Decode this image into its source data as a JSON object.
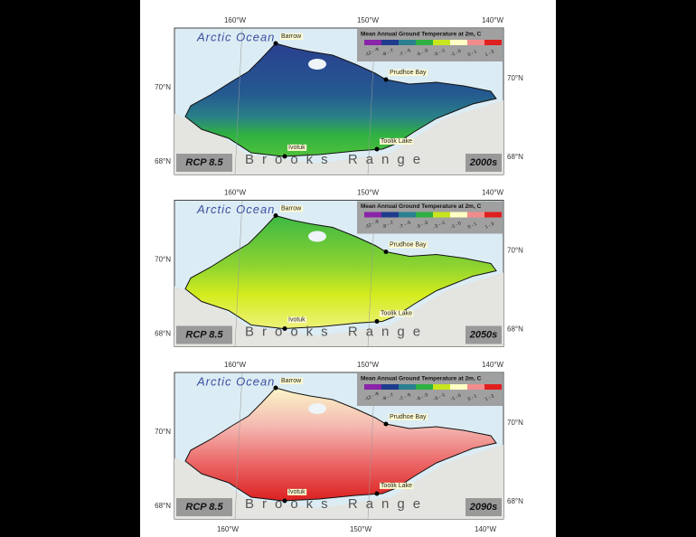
{
  "map": {
    "lon_labels": [
      "160°W",
      "150°W",
      "140°W"
    ],
    "lat_labels": [
      "70°N",
      "68°N"
    ],
    "ocean": "Arctic Ocean",
    "places": [
      "Barrow",
      "Prudhoe Bay",
      "Ivotuk",
      "Toolik Lake"
    ],
    "range": "Brooks Range",
    "legend": {
      "title": "Mean Annual Ground Temperature at 2m, C",
      "labels": [
        "-12 - -9",
        "-9 - -7",
        "-7 - -5",
        "-5 - -3",
        "-3 - -1",
        "-1 - 0",
        "0 - 1",
        "1 - 3"
      ],
      "colors": [
        "#8a24a8",
        "#1f3c8c",
        "#2a7f90",
        "#2fb043",
        "#c8e61e",
        "#ffffc4",
        "#f28c8c",
        "#e01f1f"
      ]
    }
  },
  "panels": [
    {
      "scenario": "RCP 8.5",
      "period": "2000s"
    },
    {
      "scenario": "RCP 8.5",
      "period": "2050s"
    },
    {
      "scenario": "RCP 8.5",
      "period": "2090s"
    }
  ]
}
